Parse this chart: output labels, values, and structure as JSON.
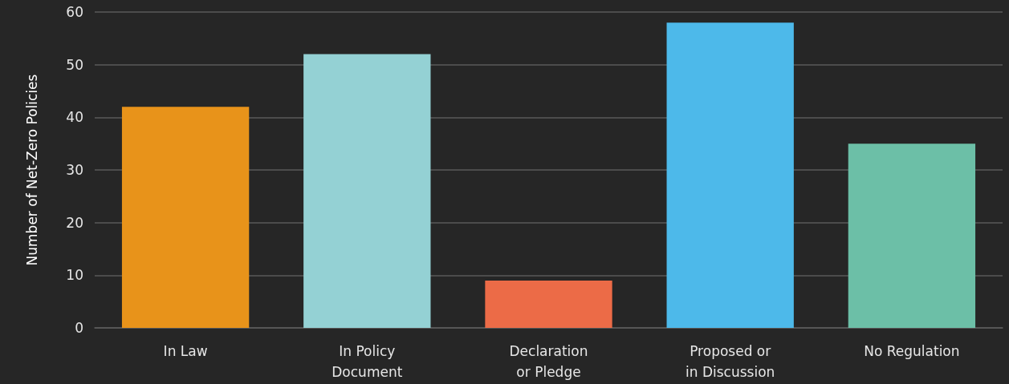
{
  "chart_data": {
    "type": "bar",
    "ylabel": "Number of Net-Zero Policies",
    "categories": [
      "In Law",
      "In Policy\nDocument",
      "Declaration\nor Pledge",
      "Proposed or\nin Discussion",
      "No Regulation"
    ],
    "values": [
      42,
      52,
      9,
      58,
      35
    ],
    "colors": [
      "#e8931a",
      "#94d1d4",
      "#ec6b47",
      "#4db9ea",
      "#6cbfa7"
    ],
    "ylim": [
      0,
      60
    ],
    "yticks": [
      0,
      10,
      20,
      30,
      40,
      50,
      60
    ],
    "grid": "y"
  }
}
